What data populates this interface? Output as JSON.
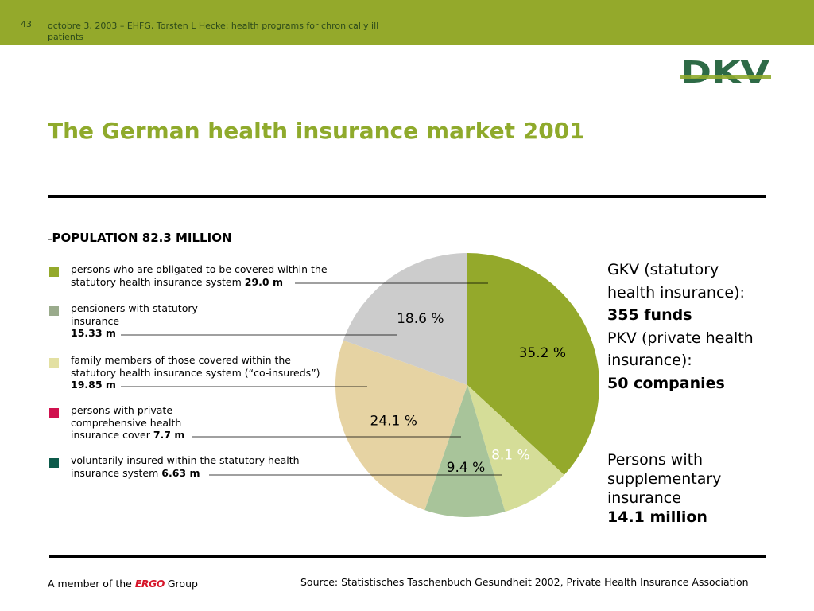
{
  "header": {
    "slide_number": "43",
    "text": "octobre 3, 2003 – EHFG, Torsten L Hecke: health programs for chronically ill patients"
  },
  "logo": {
    "text": "DKV"
  },
  "title": "The German health insurance market 2001",
  "population": {
    "dash": "–",
    "label": "POPULATION 82.3 MILLION"
  },
  "legend": [
    {
      "text": "persons who are obligated to be covered within the statutory health insurance system",
      "value": "29.0 m",
      "color": "#94a92b"
    },
    {
      "text": "pensioners with statutory insurance",
      "value": "15.33 m",
      "color": "#9aab8c"
    },
    {
      "text": "family members of those covered within the statutory health insurance system (“co-insureds”)",
      "value": "19.85 m",
      "color": "#e3e0a2"
    },
    {
      "text": "persons with private comprehensive health insurance cover",
      "value": "7.7 m",
      "color": "#d0114e"
    },
    {
      "text": "voluntarily insured within the statutory health insurance system",
      "value": "6.63 m",
      "color": "#0d5a4a"
    }
  ],
  "right_panel": {
    "gkv_label": "GKV (statutory health insurance):",
    "gkv_value": "355 funds",
    "pkv_label": "PKV (private health insurance):",
    "pkv_value": "50 companies",
    "supp_label": "Persons with supplementary insurance",
    "supp_value": "14.1 million"
  },
  "footer": {
    "member_prefix": "A member of the",
    "member_brand": "ERGO",
    "member_suffix": "Group",
    "source": "Source: Statistisches Taschenbuch Gesundheit 2002, Private Health Insurance Association"
  },
  "chart_data": {
    "type": "pie",
    "slices": [
      {
        "label": "35.2 %",
        "value": 35.2,
        "color": "#94a92b",
        "text_color": "#000000"
      },
      {
        "label": "8.1 %",
        "value": 8.1,
        "color": "#d5dd98",
        "text_color": "#ffffff"
      },
      {
        "label": "9.4 %",
        "value": 9.4,
        "color": "#a8c49a",
        "text_color": "#000000"
      },
      {
        "label": "24.1 %",
        "value": 24.1,
        "color": "#e6d3a3",
        "text_color": "#000000"
      },
      {
        "label": "18.6 %",
        "value": 18.6,
        "color": "#cccccc",
        "text_color": "#000000"
      }
    ],
    "start": "12 o'clock",
    "direction": "clockwise"
  }
}
